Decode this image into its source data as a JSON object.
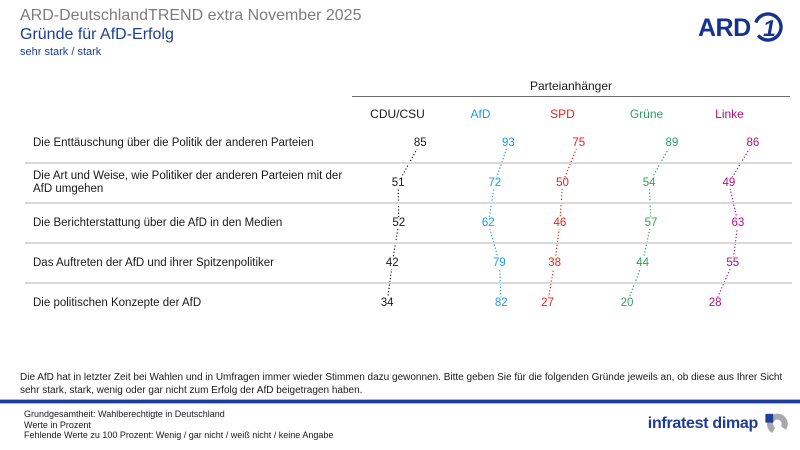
{
  "header": {
    "suptitle": "ARD-DeutschlandTREND extra November 2025",
    "title": "Gründe für AfD-Erfolg",
    "subtitle": "sehr stark / stark"
  },
  "brand": {
    "ard_label": "ARD",
    "ard_one": "1",
    "ard_color": "#15338e",
    "infratest_label": "infratest dimap",
    "infratest_blue": "#1d3e9b",
    "infratest_gray": "#a7a9ac"
  },
  "chart_data": {
    "type": "line",
    "variant": "vertical-profile-slopegraph",
    "group_header": "Parteianhänger",
    "unit": "percent",
    "value_range": [
      0,
      100
    ],
    "grid": "row-separators",
    "categories": [
      "Die Enttäuschung über die Politik der anderen Parteien",
      "Die Art und Weise, wie Politiker der anderen Parteien mit der AfD umgehen",
      "Die Berichterstattung über die AfD in den Medien",
      "Das Auftreten der AfD und ihrer Spitzenpolitiker",
      "Die politischen Konzepte der AfD"
    ],
    "series": [
      {
        "name": "CDU/CSU",
        "color": "#1a1a1a",
        "values": [
          85,
          51,
          52,
          42,
          34
        ]
      },
      {
        "name": "AfD",
        "color": "#189ee0",
        "values": [
          93,
          72,
          62,
          79,
          82
        ]
      },
      {
        "name": "SPD",
        "color": "#e9201a",
        "values": [
          75,
          50,
          46,
          38,
          27
        ]
      },
      {
        "name": "Grüne",
        "color": "#2f9e60",
        "values": [
          89,
          54,
          57,
          44,
          20
        ]
      },
      {
        "name": "Linke",
        "color": "#b10e81",
        "values": [
          86,
          49,
          63,
          55,
          28
        ]
      }
    ]
  },
  "footnote": {
    "text": "Die AfD hat in letzter Zeit bei Wahlen und in Umfragen immer wieder Stimmen dazu gewonnen. Bitte geben Sie für die folgenden Gründe jeweils an, ob diese aus Ihrer Sicht sehr stark, stark, wenig oder gar nicht zum Erfolg der AfD beigetragen haben."
  },
  "footer": {
    "lines": [
      "Grundgesamtheit: Wahlberechtigte in Deutschland",
      "Werte in Prozent",
      "Fehlende Werte zu 100 Prozent: Wenig / gar nicht / weiß nicht / keine Angabe"
    ]
  }
}
